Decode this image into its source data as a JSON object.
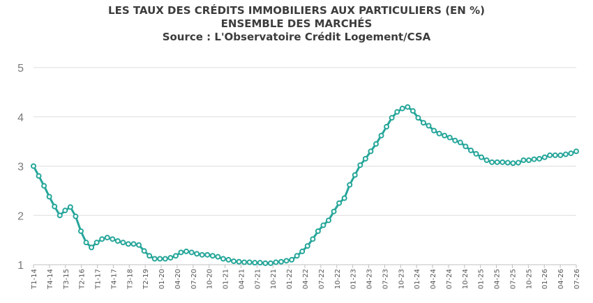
{
  "chart_data": {
    "type": "line",
    "title": "LES TAUX DES CRÉDITS IMMOBILIERS AUX PARTICULIERS (EN %)",
    "subtitle": "ENSEMBLE DES MARCHÉS",
    "source": "Source : L'Observatoire Crédit Logement/CSA",
    "xlabel": "",
    "ylabel": "",
    "ylim": [
      1,
      5
    ],
    "yticks": [
      "1",
      "2",
      "3",
      "4",
      "5"
    ],
    "grid": true,
    "legend": "none",
    "line_color": "#26a69a",
    "marker_fill": "#ffffff",
    "tick_labels": [
      "T1-14",
      "T4-14",
      "T3-15",
      "T2-16",
      "T1-17",
      "T4-17",
      "T3-18",
      "T2-19",
      "01-20",
      "04-20",
      "07-20",
      "10-20",
      "01-21",
      "04-21",
      "07-21",
      "10-21",
      "01-22",
      "04-22",
      "07-22",
      "10-22",
      "01-23",
      "04-23",
      "07-23",
      "10-23",
      "01-24",
      "04-24",
      "07-24",
      "10-24",
      "01-25",
      "04-25",
      "07-25",
      "10-25",
      "01-26",
      "04-26",
      "07-26"
    ],
    "values": [
      3.0,
      2.8,
      2.6,
      2.38,
      2.18,
      2.0,
      2.1,
      2.17,
      1.98,
      1.68,
      1.45,
      1.35,
      1.45,
      1.52,
      1.55,
      1.52,
      1.48,
      1.45,
      1.42,
      1.42,
      1.4,
      1.28,
      1.18,
      1.12,
      1.12,
      1.12,
      1.14,
      1.18,
      1.25,
      1.27,
      1.25,
      1.22,
      1.2,
      1.2,
      1.18,
      1.16,
      1.12,
      1.1,
      1.07,
      1.06,
      1.05,
      1.05,
      1.04,
      1.04,
      1.03,
      1.03,
      1.05,
      1.06,
      1.08,
      1.1,
      1.18,
      1.27,
      1.38,
      1.52,
      1.68,
      1.8,
      1.9,
      2.08,
      2.25,
      2.35,
      2.62,
      2.82,
      3.02,
      3.15,
      3.3,
      3.45,
      3.62,
      3.8,
      3.98,
      4.1,
      4.17,
      4.2,
      4.12,
      3.98,
      3.88,
      3.82,
      3.72,
      3.66,
      3.62,
      3.58,
      3.52,
      3.48,
      3.4,
      3.32,
      3.25,
      3.18,
      3.12,
      3.08,
      3.08,
      3.08,
      3.07,
      3.06,
      3.07,
      3.12,
      3.12,
      3.14,
      3.15,
      3.18,
      3.22,
      3.22,
      3.22,
      3.24,
      3.26,
      3.3
    ]
  }
}
